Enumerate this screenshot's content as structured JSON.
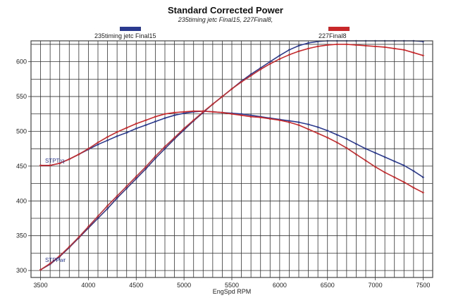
{
  "chart_data": {
    "type": "line",
    "title": "Standard Corrected Power",
    "subtitle": "235timing jetc Final15, 227Final8,",
    "xlabel": "EngSpd RPM",
    "ylabel": "",
    "xlim": [
      3400,
      7600
    ],
    "ylim": [
      290,
      630
    ],
    "xticks": [
      3500,
      4000,
      4500,
      5000,
      5500,
      6000,
      6500,
      7000,
      7500
    ],
    "yticks": [
      300,
      350,
      400,
      450,
      500,
      550,
      600
    ],
    "grid": true,
    "legend": [
      {
        "name": "235timing jetc Final15",
        "color": "#2b3a8f"
      },
      {
        "name": "227Final8",
        "color": "#c8282a"
      }
    ],
    "curve_tags": {
      "torque": "STPTrq",
      "power": "STPPwr"
    },
    "series": [
      {
        "name": "235timing jetc Final15 STPTrq",
        "color": "#2b3a8f",
        "x": [
          3500,
          3600,
          3700,
          3800,
          3900,
          4000,
          4100,
          4200,
          4300,
          4400,
          4500,
          4600,
          4700,
          4800,
          4900,
          5000,
          5100,
          5200,
          5300,
          5400,
          5500,
          5600,
          5700,
          5800,
          5900,
          6000,
          6100,
          6200,
          6300,
          6400,
          6500,
          6600,
          6700,
          6800,
          6900,
          7000,
          7100,
          7200,
          7300,
          7400,
          7500
        ],
        "y": [
          451,
          451,
          454,
          460,
          467,
          474,
          481,
          487,
          493,
          498,
          504,
          509,
          514,
          519,
          523,
          526,
          528,
          529,
          528,
          527,
          526,
          525,
          523,
          521,
          519,
          517,
          515,
          513,
          510,
          506,
          501,
          495,
          489,
          482,
          475,
          469,
          463,
          457,
          451,
          443,
          434
        ]
      },
      {
        "name": "227Final8 STPTrq",
        "color": "#c8282a",
        "x": [
          3500,
          3600,
          3700,
          3800,
          3900,
          4000,
          4100,
          4200,
          4300,
          4400,
          4500,
          4600,
          4700,
          4800,
          4900,
          5000,
          5100,
          5200,
          5300,
          5400,
          5500,
          5600,
          5700,
          5800,
          5900,
          6000,
          6100,
          6200,
          6300,
          6400,
          6500,
          6600,
          6700,
          6800,
          6900,
          7000,
          7100,
          7200,
          7300,
          7400,
          7500
        ],
        "y": [
          451,
          451,
          454,
          460,
          467,
          475,
          484,
          492,
          499,
          505,
          511,
          516,
          521,
          525,
          527,
          528,
          529,
          529,
          528,
          527,
          525,
          523,
          521,
          520,
          518,
          516,
          513,
          509,
          503,
          497,
          491,
          484,
          476,
          467,
          458,
          449,
          441,
          434,
          427,
          419,
          412
        ]
      },
      {
        "name": "235timing jetc Final15 STPPwr",
        "color": "#2b3a8f",
        "x": [
          3500,
          3600,
          3700,
          3800,
          3900,
          4000,
          4100,
          4200,
          4300,
          4400,
          4500,
          4600,
          4700,
          4800,
          4900,
          5000,
          5100,
          5200,
          5300,
          5400,
          5500,
          5600,
          5700,
          5800,
          5900,
          6000,
          6100,
          6200,
          6300,
          6400,
          6500,
          6600,
          6700,
          6800,
          6900,
          7000,
          7100,
          7200,
          7300,
          7400,
          7500
        ],
        "y": [
          301,
          309,
          320,
          333,
          347,
          361,
          375,
          389,
          404,
          418,
          432,
          446,
          461,
          475,
          489,
          502,
          515,
          527,
          539,
          550,
          561,
          572,
          582,
          591,
          600,
          609,
          617,
          623,
          627,
          629,
          630,
          630,
          630,
          630,
          630,
          630,
          630,
          630,
          630,
          630,
          629
        ]
      },
      {
        "name": "227Final8 STPPwr",
        "color": "#c8282a",
        "x": [
          3500,
          3600,
          3700,
          3800,
          3900,
          4000,
          4100,
          4200,
          4300,
          4400,
          4500,
          4600,
          4700,
          4800,
          4900,
          5000,
          5100,
          5200,
          5300,
          5400,
          5500,
          5600,
          5700,
          5800,
          5900,
          6000,
          6100,
          6200,
          6300,
          6400,
          6500,
          6600,
          6700,
          6800,
          6900,
          7000,
          7100,
          7200,
          7300,
          7400,
          7500
        ],
        "y": [
          301,
          310,
          321,
          334,
          348,
          363,
          378,
          393,
          407,
          421,
          435,
          449,
          464,
          478,
          491,
          504,
          516,
          528,
          539,
          550,
          561,
          571,
          580,
          589,
          597,
          604,
          610,
          615,
          619,
          622,
          624,
          625,
          625,
          624,
          623,
          622,
          621,
          619,
          617,
          613,
          609
        ]
      }
    ]
  }
}
